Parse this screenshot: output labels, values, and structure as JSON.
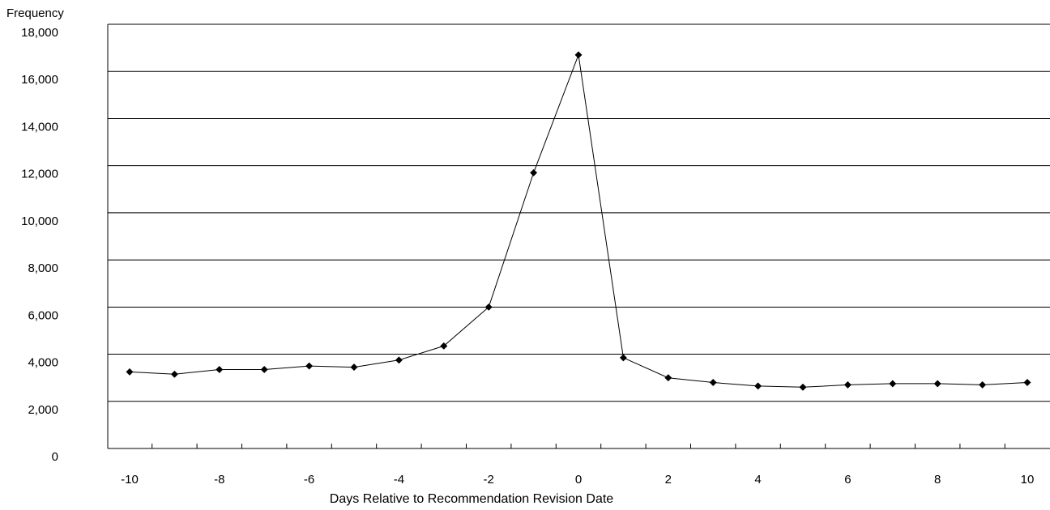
{
  "chart_data": {
    "type": "line",
    "title": "",
    "xlabel": "Days Relative to Recommendation Revision Date",
    "ylabel": "Frequency",
    "xlim": [
      -10,
      10
    ],
    "ylim": [
      0,
      18000
    ],
    "grid": "horizontal",
    "x_ticks": [
      "-10",
      "-8",
      "-6",
      "-4",
      "-2",
      "0",
      "2",
      "4",
      "6",
      "8",
      "10"
    ],
    "y_ticks": [
      "0",
      "2,000",
      "4,000",
      "6,000",
      "8,000",
      "10,000",
      "12,000",
      "14,000",
      "16,000",
      "18,000"
    ],
    "series": [
      {
        "marker": "diamond",
        "color": "#000000",
        "x": [
          -10,
          -9,
          -8,
          -7,
          -6,
          -5,
          -4,
          -3,
          -2,
          -1,
          0,
          1,
          2,
          3,
          4,
          5,
          6,
          7,
          8,
          9,
          10
        ],
        "values": [
          3250,
          3150,
          3350,
          3350,
          3500,
          3450,
          3750,
          4350,
          6000,
          11700,
          16700,
          3850,
          3000,
          2800,
          2650,
          2600,
          2700,
          2750,
          2750,
          2700,
          2800
        ]
      }
    ]
  }
}
